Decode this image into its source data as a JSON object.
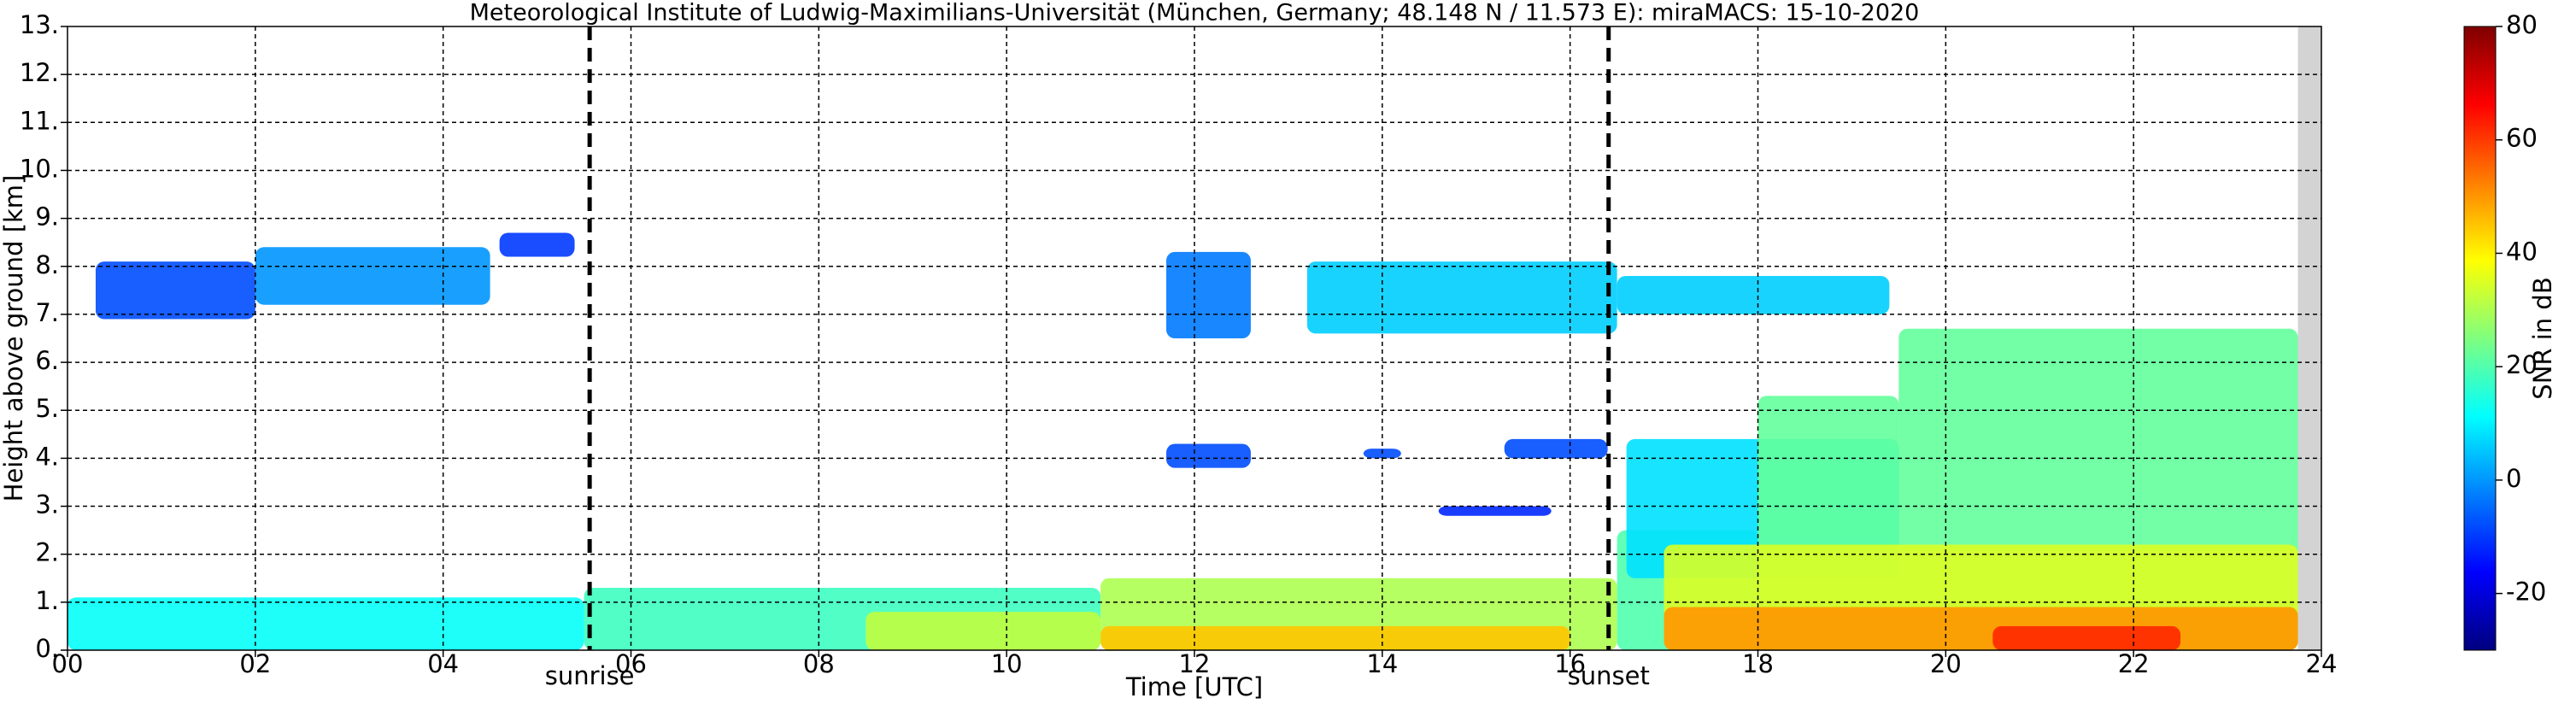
{
  "chart_data": {
    "type": "time-height",
    "title": "Meteorological Institute of Ludwig-Maximilians-Universität (München, Germany; 48.148 N / 11.573 E):    miraMACS: 15-10-2020",
    "x_label": "Time [UTC]",
    "y_label": "Height above ground [km]",
    "xlim": [
      0,
      24
    ],
    "ylim": [
      0,
      13
    ],
    "xticks": [
      {
        "value": 0,
        "label": "00"
      },
      {
        "value": 2,
        "label": "02"
      },
      {
        "value": 4,
        "label": "04"
      },
      {
        "value": 6,
        "label": "06"
      },
      {
        "value": 8,
        "label": "08"
      },
      {
        "value": 10,
        "label": "10"
      },
      {
        "value": 12,
        "label": "12"
      },
      {
        "value": 14,
        "label": "14"
      },
      {
        "value": 16,
        "label": "16"
      },
      {
        "value": 18,
        "label": "18"
      },
      {
        "value": 20,
        "label": "20"
      },
      {
        "value": 22,
        "label": "22"
      },
      {
        "value": 24,
        "label": "24"
      }
    ],
    "yticks": [
      {
        "value": 0,
        "label": "0."
      },
      {
        "value": 1,
        "label": "1."
      },
      {
        "value": 2,
        "label": "2."
      },
      {
        "value": 3,
        "label": "3."
      },
      {
        "value": 4,
        "label": "4."
      },
      {
        "value": 5,
        "label": "5."
      },
      {
        "value": 6,
        "label": "6."
      },
      {
        "value": 7,
        "label": "7."
      },
      {
        "value": 8,
        "label": "8."
      },
      {
        "value": 9,
        "label": "9."
      },
      {
        "value": 10,
        "label": "10."
      },
      {
        "value": 11,
        "label": "11."
      },
      {
        "value": 12,
        "label": "12."
      },
      {
        "value": 13,
        "label": "13."
      }
    ],
    "grid": true,
    "events": [
      {
        "name": "sunrise",
        "x": 5.56
      },
      {
        "name": "sunset",
        "x": 16.41
      }
    ],
    "no_data": [
      23.75,
      24
    ],
    "layers": [
      {
        "x": [
          0,
          5.5
        ],
        "base": 0,
        "top": 1.1,
        "snr": 12
      },
      {
        "x": [
          5.5,
          11
        ],
        "base": 0,
        "top": 1.3,
        "snr": 18
      },
      {
        "x": [
          8.5,
          11
        ],
        "base": 0,
        "top": 0.8,
        "snr": 32
      },
      {
        "x": [
          11,
          16.5
        ],
        "base": 0,
        "top": 1.5,
        "snr": 30
      },
      {
        "x": [
          11,
          16
        ],
        "base": 0,
        "top": 0.5,
        "snr": 45
      },
      {
        "x": [
          16.5,
          18
        ],
        "base": 0,
        "top": 2.5,
        "snr": 20
      },
      {
        "x": [
          16.6,
          19.5
        ],
        "base": 1.5,
        "top": 4.4,
        "snr": 8
      },
      {
        "x": [
          18,
          19.5
        ],
        "base": 0,
        "top": 5.3,
        "snr": 22
      },
      {
        "x": [
          19.5,
          23.75
        ],
        "base": 0,
        "top": 6.7,
        "snr": 22
      },
      {
        "x": [
          17,
          23.75
        ],
        "base": 0,
        "top": 2.2,
        "snr": 35
      },
      {
        "x": [
          17,
          23.75
        ],
        "base": 0,
        "top": 0.9,
        "snr": 50
      },
      {
        "x": [
          20.5,
          22.5
        ],
        "base": 0,
        "top": 0.5,
        "snr": 62
      },
      {
        "x": [
          0.3,
          2
        ],
        "base": 6.9,
        "top": 8.1,
        "snr": -8
      },
      {
        "x": [
          2,
          4.5
        ],
        "base": 7.2,
        "top": 8.4,
        "snr": 0
      },
      {
        "x": [
          4.6,
          5.4
        ],
        "base": 8.2,
        "top": 8.7,
        "snr": -10
      },
      {
        "x": [
          11.7,
          12.6
        ],
        "base": 6.5,
        "top": 8.3,
        "snr": -3
      },
      {
        "x": [
          13.2,
          16.5
        ],
        "base": 6.6,
        "top": 8.1,
        "snr": 6
      },
      {
        "x": [
          16.5,
          19.4
        ],
        "base": 7,
        "top": 7.8,
        "snr": 6
      },
      {
        "x": [
          11.7,
          12.6
        ],
        "base": 3.8,
        "top": 4.3,
        "snr": -8
      },
      {
        "x": [
          13.8,
          14.2
        ],
        "base": 4,
        "top": 4.2,
        "snr": -8
      },
      {
        "x": [
          15.3,
          16.4
        ],
        "base": 4,
        "top": 4.4,
        "snr": -8
      },
      {
        "x": [
          14.6,
          15.8
        ],
        "base": 2.8,
        "top": 3,
        "snr": -12
      }
    ],
    "colorbar": {
      "label": "SNR in dB",
      "lim": [
        -30,
        80
      ],
      "ticks": [
        80,
        60,
        40,
        20,
        0,
        -20
      ],
      "colors": [
        "#00007f",
        "#0000ff",
        "#007fff",
        "#00ffff",
        "#7fff7f",
        "#ffff00",
        "#ff7f00",
        "#ff0000",
        "#7f0000"
      ]
    }
  }
}
